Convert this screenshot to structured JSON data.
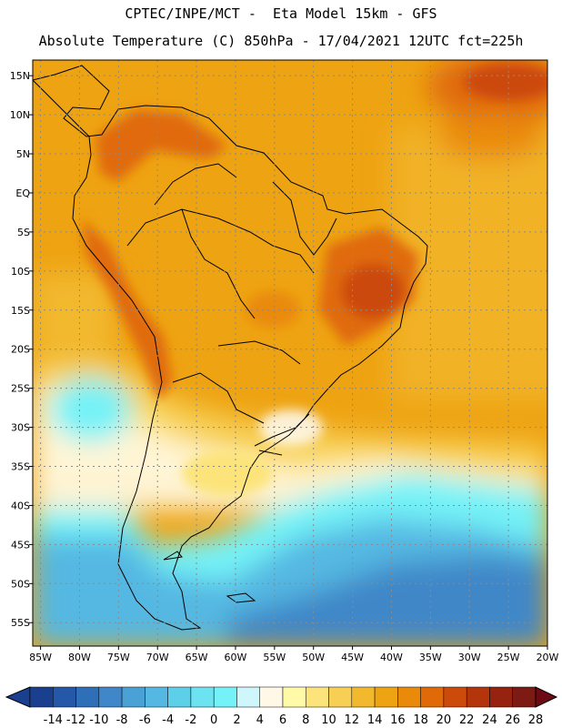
{
  "header": {
    "line1": "CPTEC/INPE/MCT -  Eta Model 15km - GFS",
    "line2": "Absolute Temperature (C) 850hPa - 17/04/2021 12UTC fct=225h"
  },
  "map": {
    "lat_labels": [
      "15N",
      "10N",
      "5N",
      "EQ",
      "5S",
      "10S",
      "15S",
      "20S",
      "25S",
      "30S",
      "35S",
      "40S",
      "45S",
      "50S",
      "55S"
    ],
    "lon_labels": [
      "85W",
      "80W",
      "75W",
      "70W",
      "65W",
      "60W",
      "55W",
      "50W",
      "45W",
      "40W",
      "35W",
      "30W",
      "25W",
      "20W"
    ],
    "lat_range": [
      17,
      -58
    ],
    "lon_range": [
      -86,
      -20
    ],
    "grid": "dotted"
  },
  "colorbar": {
    "labels": [
      "-14",
      "-12",
      "-10",
      "-8",
      "-6",
      "-4",
      "-2",
      "0",
      "2",
      "4",
      "6",
      "8",
      "10",
      "12",
      "14",
      "16",
      "18",
      "20",
      "22",
      "24",
      "26",
      "28"
    ],
    "colors": [
      "#1a3f8f",
      "#2558a8",
      "#2f6fb8",
      "#3f87c8",
      "#4aa1d6",
      "#55b8e2",
      "#5ecfe8",
      "#6de2f0",
      "#74f2f7",
      "#cef6fb",
      "#fff8e6",
      "#fffaa8",
      "#fce47a",
      "#f7cf55",
      "#f2b82e",
      "#eea312",
      "#ea8a0a",
      "#e06a08",
      "#cc4a0a",
      "#b4350c",
      "#962310",
      "#7e1a14"
    ]
  }
}
